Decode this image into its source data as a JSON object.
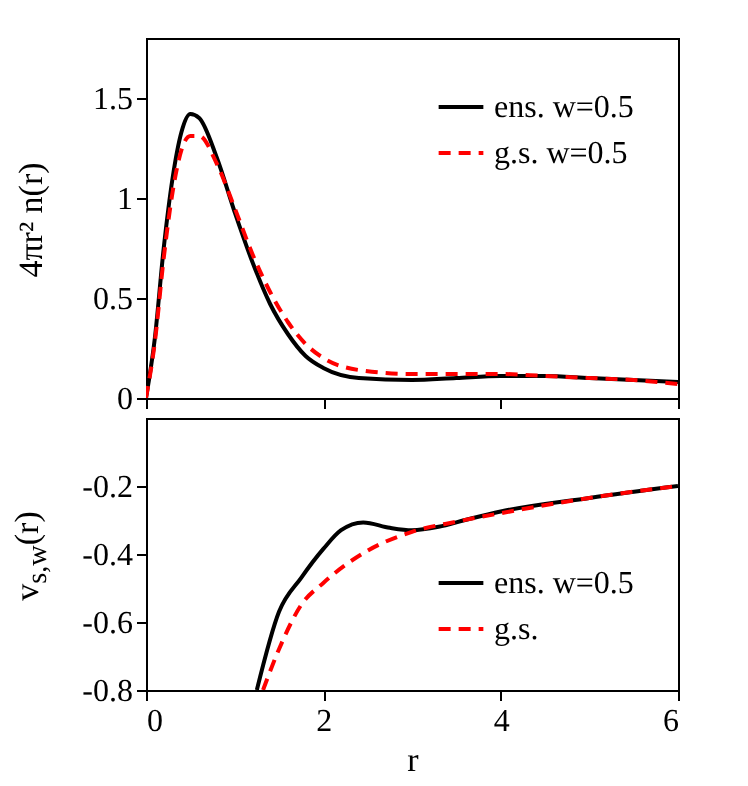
{
  "chart_data": [
    {
      "type": "line",
      "ylabel": "4πr² n(r)",
      "xlim": [
        0,
        6
      ],
      "xticks": [
        0,
        2,
        4,
        6
      ],
      "ylim": [
        0,
        1.8
      ],
      "yticks": [
        {
          "value": 0,
          "label": "0"
        },
        {
          "value": 0.5,
          "label": "0.5"
        },
        {
          "value": 1,
          "label": "1"
        },
        {
          "value": 1.5,
          "label": "1.5"
        }
      ],
      "tick_labels": "y",
      "legend": "top right",
      "grid": false,
      "x": [
        0,
        0.1,
        0.2,
        0.3,
        0.4,
        0.5,
        0.6,
        0.8,
        1.0,
        1.2,
        1.4,
        1.6,
        1.8,
        2.0,
        2.4,
        3.0,
        3.5,
        4.0,
        4.5,
        5.0,
        5.5,
        6.0
      ],
      "series": [
        {
          "name": "ens. w=0.5",
          "color": "#000000",
          "line_style": "solid",
          "values": [
            0,
            0.3,
            0.75,
            1.1,
            1.33,
            1.42,
            1.4,
            1.2,
            0.93,
            0.68,
            0.47,
            0.32,
            0.21,
            0.15,
            0.1,
            0.09,
            0.1,
            0.11,
            0.11,
            0.1,
            0.09,
            0.08
          ]
        },
        {
          "name": "g.s. w=0.5",
          "color": "#ff0000",
          "line_style": "dashed",
          "values": [
            0,
            0.28,
            0.7,
            1.03,
            1.24,
            1.31,
            1.31,
            1.17,
            0.95,
            0.72,
            0.53,
            0.38,
            0.27,
            0.2,
            0.14,
            0.12,
            0.12,
            0.12,
            0.11,
            0.1,
            0.09,
            0.07
          ]
        }
      ]
    },
    {
      "type": "line",
      "xlabel": "r",
      "ylabel": "v$_{s,w}$(r)",
      "xlim": [
        0,
        6
      ],
      "xticks": [
        0,
        2,
        4,
        6
      ],
      "ylim": [
        -0.8,
        0
      ],
      "yticks": [
        {
          "value": -0.8,
          "label": "-0.8"
        },
        {
          "value": -0.6,
          "label": "-0.6"
        },
        {
          "value": -0.4,
          "label": "-0.4"
        },
        {
          "value": -0.2,
          "label": "-0.2"
        }
      ],
      "legend": "bottom right",
      "grid": false,
      "series": [
        {
          "name": "ens. w=0.5",
          "color": "#000000",
          "line_style": "solid",
          "x": [
            1.25,
            1.5,
            1.75,
            2.0,
            2.2,
            2.45,
            2.75,
            3.0,
            3.3,
            3.6,
            4.0,
            5.0,
            6.0
          ],
          "values": [
            -0.8,
            -0.57,
            -0.47,
            -0.385,
            -0.33,
            -0.307,
            -0.323,
            -0.33,
            -0.32,
            -0.3,
            -0.275,
            -0.235,
            -0.2
          ]
        },
        {
          "name": "g.s.",
          "color": "#ff0000",
          "line_style": "dashed",
          "x": [
            1.32,
            1.5,
            1.75,
            2.0,
            2.5,
            3.0,
            3.5,
            4.0,
            5.0,
            6.0
          ],
          "values": [
            -0.8,
            -0.68,
            -0.55,
            -0.485,
            -0.39,
            -0.335,
            -0.305,
            -0.28,
            -0.235,
            -0.2
          ]
        }
      ]
    }
  ]
}
